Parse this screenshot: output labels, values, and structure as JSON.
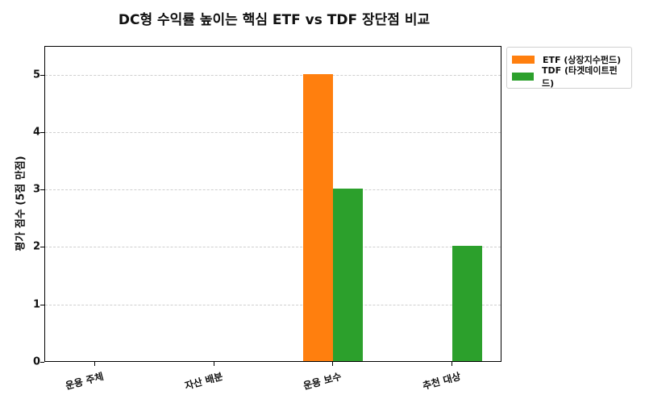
{
  "chart_data": {
    "type": "bar",
    "title": "DC형 수익률 높이는 핵심 ETF vs TDF 장단점 비교",
    "xlabel": "",
    "ylabel": "평가 점수 (5점 만점)",
    "categories": [
      "운용 주체",
      "자산 배분",
      "운용 보수",
      "추천 대상"
    ],
    "series": [
      {
        "name": "ETF (상장지수펀드)",
        "color": "#ff7f0e",
        "values": [
          0,
          0,
          5,
          0
        ]
      },
      {
        "name": "TDF (타겟데이트펀드)",
        "color": "#2ca02c",
        "values": [
          0,
          0,
          3,
          2
        ]
      }
    ],
    "ylim": [
      0,
      5.5
    ],
    "yticks": [
      "0",
      "1",
      "2",
      "3",
      "4",
      "5"
    ],
    "grid": true,
    "legend_position": "upper right outside"
  }
}
